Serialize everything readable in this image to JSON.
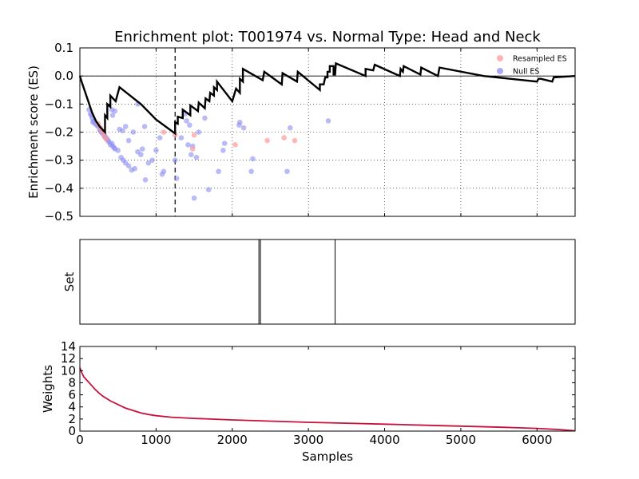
{
  "chart_data": {
    "title": "Enrichment plot: T001974 vs. Normal Type: Head and Neck",
    "colors": {
      "es_line": "#000000",
      "resampled": "#ff9a9a",
      "null": "#8c8cf2",
      "weights": "#c8103a"
    },
    "panels": [
      {
        "id": "es",
        "type": "line+scatter",
        "ylabel": "Enrichment score (ES)",
        "xlim": [
          0,
          6500
        ],
        "ylim": [
          -0.5,
          0.1
        ],
        "yticks": [
          {
            "v": 0.1,
            "label": "0.1"
          },
          {
            "v": 0.0,
            "label": "0.0"
          },
          {
            "v": -0.1,
            "label": "−0.1"
          },
          {
            "v": -0.2,
            "label": "−0.2"
          },
          {
            "v": -0.3,
            "label": "−0.3"
          },
          {
            "v": -0.4,
            "label": "−0.4"
          },
          {
            "v": -0.5,
            "label": "−0.5"
          }
        ],
        "grid": true,
        "legend": {
          "position": "top-right",
          "entries": [
            {
              "label": "Resampled ES",
              "series": "resampled"
            },
            {
              "label": "Null ES",
              "series": "null"
            }
          ]
        },
        "vline_x": 1250,
        "es_line": [
          [
            0,
            0.0
          ],
          [
            20,
            -0.018
          ],
          [
            60,
            -0.05
          ],
          [
            110,
            -0.09
          ],
          [
            160,
            -0.13
          ],
          [
            210,
            -0.16
          ],
          [
            260,
            -0.18
          ],
          [
            310,
            -0.195
          ],
          [
            330,
            -0.2
          ],
          [
            330,
            -0.14
          ],
          [
            360,
            -0.15
          ],
          [
            360,
            -0.1
          ],
          [
            400,
            -0.11
          ],
          [
            400,
            -0.07
          ],
          [
            470,
            -0.09
          ],
          [
            520,
            -0.04
          ],
          [
            800,
            -0.1
          ],
          [
            1000,
            -0.155
          ],
          [
            1250,
            -0.205
          ],
          [
            1250,
            -0.165
          ],
          [
            1285,
            -0.17
          ],
          [
            1285,
            -0.145
          ],
          [
            1350,
            -0.15
          ],
          [
            1350,
            -0.12
          ],
          [
            1450,
            -0.14
          ],
          [
            1450,
            -0.105
          ],
          [
            1550,
            -0.125
          ],
          [
            1560,
            -0.095
          ],
          [
            1640,
            -0.115
          ],
          [
            1650,
            -0.08
          ],
          [
            1700,
            -0.09
          ],
          [
            1710,
            -0.06
          ],
          [
            1760,
            -0.07
          ],
          [
            1760,
            -0.04
          ],
          [
            1800,
            -0.05
          ],
          [
            1800,
            -0.02
          ],
          [
            2000,
            -0.09
          ],
          [
            2050,
            -0.045
          ],
          [
            2100,
            -0.06
          ],
          [
            2100,
            -0.01
          ],
          [
            2140,
            -0.02
          ],
          [
            2140,
            0.025
          ],
          [
            2400,
            -0.015
          ],
          [
            2420,
            0.015
          ],
          [
            2650,
            -0.03
          ],
          [
            2660,
            0.01
          ],
          [
            2850,
            -0.02
          ],
          [
            2860,
            0.015
          ],
          [
            3150,
            -0.05
          ],
          [
            3150,
            -0.03
          ],
          [
            3200,
            -0.03
          ],
          [
            3220,
            -0.005
          ],
          [
            3250,
            -0.005
          ],
          [
            3250,
            0.015
          ],
          [
            3280,
            0.015
          ],
          [
            3280,
            0.035
          ],
          [
            3330,
            0.035
          ],
          [
            3330,
            0.005
          ],
          [
            3350,
            0.005
          ],
          [
            3360,
            0.045
          ],
          [
            3750,
            0.0
          ],
          [
            3750,
            0.025
          ],
          [
            3850,
            0.02
          ],
          [
            3870,
            0.04
          ],
          [
            4200,
            0.0
          ],
          [
            4210,
            0.025
          ],
          [
            4240,
            0.015
          ],
          [
            4250,
            0.035
          ],
          [
            4470,
            0.005
          ],
          [
            4480,
            0.03
          ],
          [
            4700,
            0.0
          ],
          [
            4720,
            0.03
          ],
          [
            5300,
            0.0
          ],
          [
            6000,
            -0.02
          ],
          [
            6020,
            -0.01
          ],
          [
            6050,
            -0.01
          ],
          [
            6200,
            -0.02
          ],
          [
            6220,
            -0.005
          ],
          [
            6500,
            0.0
          ]
        ],
        "resampled": [
          [
            240,
            -0.17
          ],
          [
            270,
            -0.185
          ],
          [
            290,
            -0.195
          ],
          [
            310,
            -0.2
          ],
          [
            320,
            -0.215
          ],
          [
            345,
            -0.225
          ],
          [
            1100,
            -0.2
          ],
          [
            1250,
            -0.21
          ],
          [
            1480,
            -0.26
          ],
          [
            1500,
            -0.21
          ],
          [
            2040,
            -0.245
          ],
          [
            2460,
            -0.23
          ],
          [
            2680,
            -0.22
          ],
          [
            2820,
            -0.23
          ]
        ],
        "null": [
          [
            120,
            -0.12
          ],
          [
            140,
            -0.135
          ],
          [
            160,
            -0.15
          ],
          [
            180,
            -0.16
          ],
          [
            200,
            -0.17
          ],
          [
            220,
            -0.175
          ],
          [
            240,
            -0.18
          ],
          [
            260,
            -0.19
          ],
          [
            280,
            -0.2
          ],
          [
            300,
            -0.205
          ],
          [
            320,
            -0.21
          ],
          [
            340,
            -0.22
          ],
          [
            360,
            -0.225
          ],
          [
            380,
            -0.235
          ],
          [
            400,
            -0.245
          ],
          [
            430,
            -0.25
          ],
          [
            460,
            -0.26
          ],
          [
            500,
            -0.265
          ],
          [
            150,
            -0.14
          ],
          [
            170,
            -0.165
          ],
          [
            270,
            -0.195
          ],
          [
            330,
            -0.215
          ],
          [
            370,
            -0.23
          ],
          [
            420,
            -0.24
          ],
          [
            450,
            -0.255
          ],
          [
            540,
            -0.29
          ],
          [
            570,
            -0.3
          ],
          [
            600,
            -0.31
          ],
          [
            640,
            -0.32
          ],
          [
            680,
            -0.335
          ],
          [
            720,
            -0.33
          ],
          [
            760,
            -0.27
          ],
          [
            800,
            -0.28
          ],
          [
            820,
            -0.26
          ],
          [
            860,
            -0.37
          ],
          [
            900,
            -0.31
          ],
          [
            950,
            -0.3
          ],
          [
            1000,
            -0.265
          ],
          [
            1050,
            -0.22
          ],
          [
            1080,
            -0.35
          ],
          [
            1100,
            -0.34
          ],
          [
            520,
            -0.19
          ],
          [
            560,
            -0.195
          ],
          [
            600,
            -0.18
          ],
          [
            640,
            -0.23
          ],
          [
            700,
            -0.2
          ],
          [
            760,
            -0.1
          ],
          [
            850,
            -0.18
          ],
          [
            420,
            -0.12
          ],
          [
            430,
            -0.14
          ],
          [
            460,
            -0.125
          ],
          [
            1250,
            -0.3
          ],
          [
            1270,
            -0.365
          ],
          [
            1330,
            -0.22
          ],
          [
            1380,
            -0.135
          ],
          [
            1400,
            -0.16
          ],
          [
            1420,
            -0.245
          ],
          [
            1440,
            -0.175
          ],
          [
            1460,
            -0.28
          ],
          [
            1480,
            -0.25
          ],
          [
            1500,
            -0.435
          ],
          [
            1530,
            -0.29
          ],
          [
            1560,
            -0.2
          ],
          [
            1640,
            -0.15
          ],
          [
            1690,
            -0.405
          ],
          [
            1820,
            -0.34
          ],
          [
            1880,
            -0.265
          ],
          [
            1900,
            -0.24
          ],
          [
            2090,
            -0.175
          ],
          [
            2100,
            -0.165
          ],
          [
            2150,
            -0.185
          ],
          [
            2250,
            -0.34
          ],
          [
            2270,
            -0.295
          ],
          [
            2720,
            -0.34
          ],
          [
            2760,
            -0.185
          ],
          [
            3260,
            -0.16
          ]
        ]
      },
      {
        "id": "set",
        "type": "rug",
        "ylabel": "Set",
        "xlim": [
          0,
          6500
        ],
        "ticks": [
          2350,
          2370,
          3350
        ]
      },
      {
        "id": "weights",
        "type": "line",
        "ylabel": "Weights",
        "xlabel": "Samples",
        "xlim": [
          0,
          6500
        ],
        "ylim": [
          0,
          14
        ],
        "xticks": [
          {
            "v": 0,
            "label": "0"
          },
          {
            "v": 1000,
            "label": "1000"
          },
          {
            "v": 2000,
            "label": "2000"
          },
          {
            "v": 3000,
            "label": "3000"
          },
          {
            "v": 4000,
            "label": "4000"
          },
          {
            "v": 5000,
            "label": "5000"
          },
          {
            "v": 6000,
            "label": "6000"
          }
        ],
        "yticks": [
          {
            "v": 0,
            "label": "0"
          },
          {
            "v": 2,
            "label": "2"
          },
          {
            "v": 4,
            "label": "4"
          },
          {
            "v": 6,
            "label": "6"
          },
          {
            "v": 8,
            "label": "8"
          },
          {
            "v": 10,
            "label": "10"
          },
          {
            "v": 12,
            "label": "12"
          },
          {
            "v": 14,
            "label": "14"
          }
        ],
        "weights_line": [
          [
            0,
            10.5
          ],
          [
            20,
            9.8
          ],
          [
            50,
            9.0
          ],
          [
            100,
            8.3
          ],
          [
            150,
            7.6
          ],
          [
            200,
            6.9
          ],
          [
            250,
            6.3
          ],
          [
            300,
            5.8
          ],
          [
            350,
            5.4
          ],
          [
            400,
            5.0
          ],
          [
            500,
            4.4
          ],
          [
            600,
            3.8
          ],
          [
            700,
            3.4
          ],
          [
            800,
            3.0
          ],
          [
            900,
            2.75
          ],
          [
            1000,
            2.55
          ],
          [
            1200,
            2.3
          ],
          [
            1500,
            2.1
          ],
          [
            2000,
            1.85
          ],
          [
            2500,
            1.65
          ],
          [
            3000,
            1.45
          ],
          [
            3500,
            1.3
          ],
          [
            4000,
            1.15
          ],
          [
            4500,
            0.98
          ],
          [
            5000,
            0.82
          ],
          [
            5500,
            0.65
          ],
          [
            6000,
            0.45
          ],
          [
            6300,
            0.25
          ],
          [
            6500,
            0.05
          ]
        ]
      }
    ]
  }
}
